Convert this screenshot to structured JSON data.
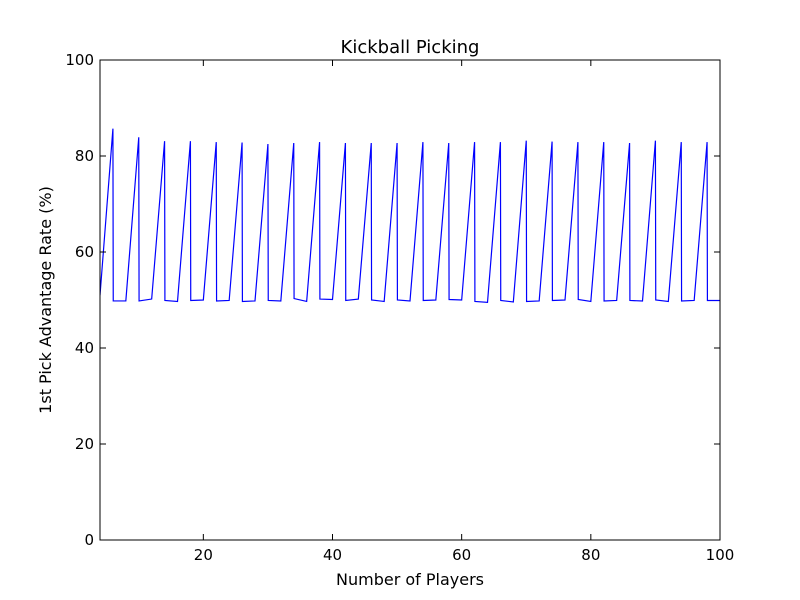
{
  "chart_data": {
    "type": "line",
    "title": "Kickball Picking",
    "xlabel": "Number of Players",
    "ylabel": "1st Pick Advantage Rate (%)",
    "xlim": [
      4,
      100
    ],
    "ylim": [
      0,
      100
    ],
    "xticks": [
      20,
      40,
      60,
      80,
      100
    ],
    "yticks": [
      0,
      20,
      40,
      60,
      80,
      100
    ],
    "grid": false,
    "legend": "none",
    "series": [
      {
        "color": "#0000ff",
        "x": [
          4,
          6,
          6.05,
          8,
          10,
          10.05,
          12,
          14,
          14.05,
          16,
          18,
          18.05,
          20,
          22,
          22.05,
          24,
          26,
          26.05,
          28,
          30,
          30.05,
          32,
          34,
          34.05,
          36,
          38,
          38.05,
          40,
          42,
          42.05,
          44,
          46,
          46.05,
          48,
          50,
          50.05,
          52,
          54,
          54.05,
          56,
          58,
          58.05,
          60,
          62,
          62.05,
          64,
          66,
          66.05,
          68,
          70,
          70.05,
          72,
          74,
          74.05,
          76,
          78,
          78.05,
          80,
          82,
          82.05,
          84,
          86,
          86.05,
          88,
          90,
          90.05,
          92,
          94,
          94.05,
          96,
          98,
          98.05,
          100
        ],
        "y": [
          51,
          85.7,
          49.8,
          49.8,
          83.9,
          49.8,
          50.2,
          83.1,
          49.9,
          49.7,
          83.1,
          49.9,
          50.0,
          82.9,
          49.8,
          49.9,
          82.8,
          49.7,
          49.8,
          82.5,
          49.9,
          49.8,
          82.7,
          50.3,
          49.7,
          82.9,
          50.2,
          50.1,
          82.7,
          49.9,
          50.2,
          82.7,
          50.0,
          49.7,
          82.7,
          50.0,
          49.8,
          82.9,
          49.9,
          50.0,
          82.7,
          50.1,
          50.0,
          82.9,
          49.7,
          49.5,
          82.9,
          49.9,
          49.6,
          83.2,
          49.7,
          49.8,
          83.0,
          49.9,
          50.0,
          82.9,
          50.1,
          49.7,
          82.9,
          49.8,
          49.9,
          82.7,
          49.9,
          49.8,
          83.2,
          50.0,
          49.7,
          82.9,
          49.8,
          49.9,
          82.9,
          49.9,
          49.9
        ]
      }
    ]
  }
}
